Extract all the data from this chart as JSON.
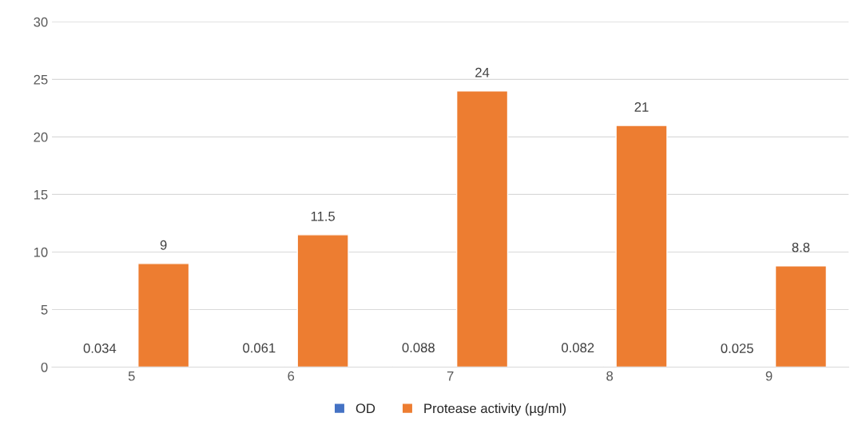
{
  "chart_data": {
    "type": "bar",
    "categories": [
      "5",
      "6",
      "7",
      "8",
      "9"
    ],
    "series": [
      {
        "name": "OD",
        "color": "#4472c4",
        "values": [
          0.034,
          0.061,
          0.088,
          0.082,
          0.025
        ]
      },
      {
        "name": "Protease activity (µg/ml)",
        "color": "#ed7d31",
        "values": [
          9,
          11.5,
          24,
          21,
          8.8
        ]
      }
    ],
    "ylim": [
      0,
      30
    ],
    "yticks": [
      0,
      5,
      10,
      15,
      20,
      25,
      30
    ],
    "grid": "y",
    "legend": "bottom",
    "data_labels": true
  }
}
